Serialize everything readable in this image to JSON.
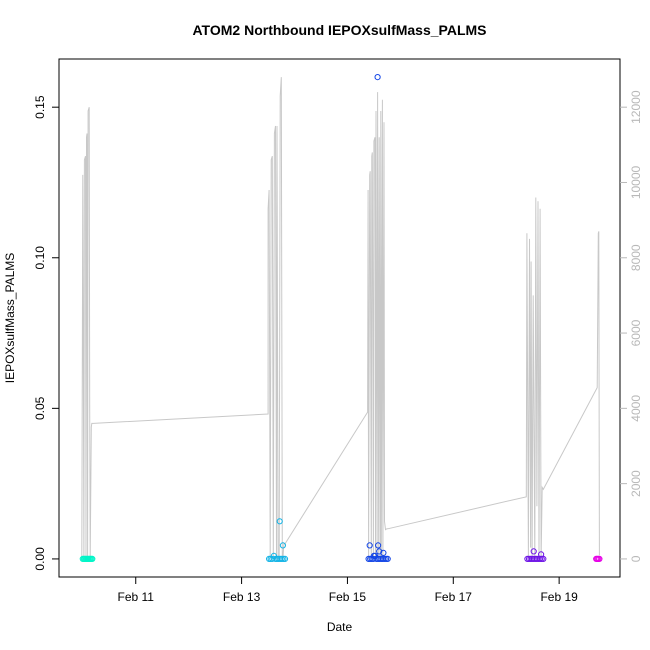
{
  "chart_data": {
    "type": "scatter",
    "title": "ATOM2 Northbound IEPOXsulfMass_PALMS",
    "xlabel": "Date",
    "ylabel": "IEPOXsulfMass_PALMS",
    "x_axis": {
      "unit": "day-of-February",
      "range": [
        9.55,
        20.15
      ],
      "ticks": [
        {
          "value": 11,
          "label": "Feb 11"
        },
        {
          "value": 13,
          "label": "Feb 13"
        },
        {
          "value": 15,
          "label": "Feb 15"
        },
        {
          "value": 17,
          "label": "Feb 17"
        },
        {
          "value": 19,
          "label": "Feb 19"
        }
      ]
    },
    "y_axis_left": {
      "range": [
        -0.006,
        0.166
      ],
      "ticks": [
        {
          "value": 0.0,
          "label": "0.00"
        },
        {
          "value": 0.05,
          "label": "0.05"
        },
        {
          "value": 0.1,
          "label": "0.10"
        },
        {
          "value": 0.15,
          "label": "0.15"
        }
      ]
    },
    "y_axis_right": {
      "range": [
        -480,
        13280
      ],
      "color": "#b8b8b8",
      "ticks": [
        {
          "value": 0,
          "label": "0"
        },
        {
          "value": 2000,
          "label": "2000"
        },
        {
          "value": 4000,
          "label": "4000"
        },
        {
          "value": 6000,
          "label": "6000"
        },
        {
          "value": 8000,
          "label": "8000"
        },
        {
          "value": 10000,
          "label": "10000"
        },
        {
          "value": 12000,
          "label": "12000"
        }
      ]
    },
    "altitude_line": {
      "color": "#c8c8c8",
      "x": [
        9.98,
        10.0,
        10.0,
        10.02,
        10.03,
        10.05,
        10.06,
        10.07,
        10.08,
        10.09,
        10.1,
        10.12,
        10.13,
        10.14,
        10.16,
        10.17,
        10.2,
        13.5,
        13.5,
        13.52,
        13.54,
        13.56,
        13.58,
        13.6,
        13.62,
        13.64,
        13.66,
        13.67,
        13.69,
        13.71,
        13.73,
        13.75,
        13.77,
        13.78,
        13.8,
        13.82,
        15.38,
        15.39,
        15.4,
        15.42,
        15.43,
        15.45,
        15.46,
        15.47,
        15.49,
        15.5,
        15.52,
        15.53,
        15.54,
        15.56,
        15.57,
        15.59,
        15.6,
        15.62,
        15.63,
        15.64,
        15.66,
        15.67,
        15.69,
        15.7,
        15.72,
        15.73,
        15.75,
        15.76,
        18.38,
        18.39,
        18.42,
        18.44,
        18.46,
        18.47,
        18.49,
        18.51,
        18.54,
        18.56,
        18.58,
        18.6,
        18.62,
        18.64,
        18.66,
        18.68,
        18.7,
        19.72,
        19.74,
        19.75,
        19.76
      ],
      "y": [
        0,
        10200,
        10200,
        0,
        10600,
        10700,
        0,
        11200,
        11300,
        0,
        11900,
        12000,
        4000,
        0,
        3500,
        3600,
        3600,
        3850,
        9300,
        9800,
        0,
        10600,
        10700,
        0,
        11300,
        11500,
        0,
        11500,
        0,
        0,
        12300,
        12800,
        0,
        0,
        420,
        400,
        3900,
        9800,
        0,
        10200,
        10300,
        0,
        10700,
        10800,
        0,
        11100,
        11200,
        0,
        11900,
        0,
        12400,
        0,
        11200,
        0,
        11900,
        0,
        12200,
        0,
        11600,
        1000,
        780,
        790,
        800,
        800,
        1650,
        8650,
        0,
        8500,
        300,
        7900,
        0,
        7000,
        0,
        9600,
        1400,
        9500,
        0,
        9300,
        0,
        1900,
        1850,
        4550,
        8650,
        8700,
        100
      ]
    },
    "series": [
      {
        "flight": 1,
        "color": "#00f5c8",
        "x": [
          10.0,
          10.02,
          10.04,
          10.06,
          10.08,
          10.1,
          10.12,
          10.14,
          10.16,
          10.18
        ],
        "y": [
          0.0,
          0.0,
          0.0,
          0.0,
          0.0,
          0.0,
          0.0,
          0.0,
          0.0,
          0.0
        ]
      },
      {
        "flight": 2,
        "color": "#14b4e6",
        "x": [
          13.52,
          13.55,
          13.58,
          13.61,
          13.64,
          13.67,
          13.7,
          13.73,
          13.76,
          13.79,
          13.82,
          13.72,
          13.78
        ],
        "y": [
          0.0,
          0.0,
          0.0,
          0.001,
          0.0,
          0.0,
          0.0,
          0.0,
          0.0,
          0.0,
          0.0,
          0.0125,
          0.0045
        ]
      },
      {
        "flight": 3,
        "color": "#1446e6",
        "x": [
          15.4,
          15.43,
          15.46,
          15.49,
          15.52,
          15.55,
          15.58,
          15.61,
          15.64,
          15.67,
          15.7,
          15.73,
          15.76,
          15.42,
          15.57,
          15.58,
          15.6,
          15.68,
          15.5
        ],
        "y": [
          0.0,
          0.0,
          0.0,
          0.0,
          0.001,
          0.0,
          0.0,
          0.0,
          0.0,
          0.0,
          0.0,
          0.0,
          0.0,
          0.0045,
          0.16,
          0.0045,
          0.0025,
          0.002,
          0.001
        ]
      },
      {
        "flight": 4,
        "color": "#6e14e6",
        "x": [
          18.4,
          18.43,
          18.46,
          18.49,
          18.52,
          18.55,
          18.58,
          18.61,
          18.64,
          18.67,
          18.7,
          18.52,
          18.66
        ],
        "y": [
          0.0,
          0.0,
          0.0,
          0.0,
          0.0,
          0.0,
          0.0,
          0.0,
          0.0,
          0.0,
          0.0,
          0.0025,
          0.0015
        ]
      },
      {
        "flight": 5,
        "color": "#e600e6",
        "x": [
          19.7,
          19.72,
          19.74,
          19.76
        ],
        "y": [
          0.0,
          0.0,
          0.0,
          0.0
        ]
      }
    ]
  }
}
